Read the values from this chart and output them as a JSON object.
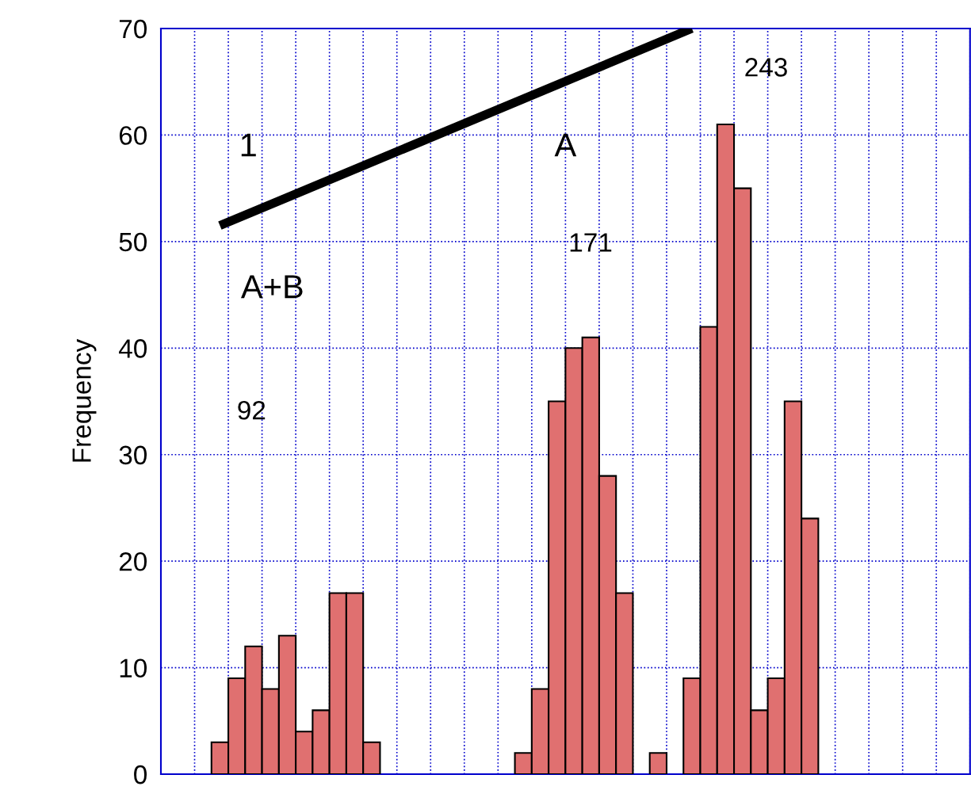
{
  "chart_data": {
    "type": "bar",
    "ylabel": "Frequency",
    "categories": [
      null,
      null,
      null,
      null,
      null,
      null,
      null,
      null,
      null,
      null,
      null,
      null,
      null,
      null,
      null,
      null,
      null,
      null,
      null,
      null,
      null,
      null,
      null,
      null,
      null,
      null,
      null,
      null,
      null,
      null,
      null,
      null,
      null,
      null,
      null,
      null,
      null,
      null,
      null,
      null,
      null,
      null,
      null,
      null,
      null,
      null,
      null,
      null
    ],
    "series": [
      {
        "color": "#e07070",
        "values": [
          null,
          null,
          null,
          3,
          9,
          12,
          8,
          13,
          4,
          6,
          17,
          17,
          3,
          null,
          null,
          null,
          null,
          null,
          null,
          null,
          null,
          2,
          8,
          35,
          40,
          41,
          28,
          17,
          null,
          2,
          null,
          9,
          42,
          61,
          55,
          6,
          9,
          35,
          24,
          null,
          null,
          null,
          null,
          null,
          null,
          null,
          null,
          null
        ]
      },
      {
        "type": "line",
        "color": "#000000",
        "values": [
          null,
          null,
          null,
          51.5,
          null,
          null,
          null,
          null,
          null,
          null,
          null,
          null,
          null,
          null,
          null,
          null,
          null,
          null,
          null,
          null,
          null,
          null,
          null,
          null,
          null,
          null,
          null,
          null,
          null,
          null,
          null,
          70,
          null,
          null,
          null,
          null,
          null,
          null,
          null,
          null,
          null,
          null,
          null,
          null,
          null,
          null,
          null,
          null
        ]
      }
    ],
    "annotations": [
      "1",
      "A",
      "243",
      "171",
      "A+B",
      "92"
    ],
    "ylim": [
      0,
      70
    ],
    "yticks": [
      0,
      10,
      20,
      30,
      40,
      50,
      60,
      70
    ],
    "grid": true
  }
}
